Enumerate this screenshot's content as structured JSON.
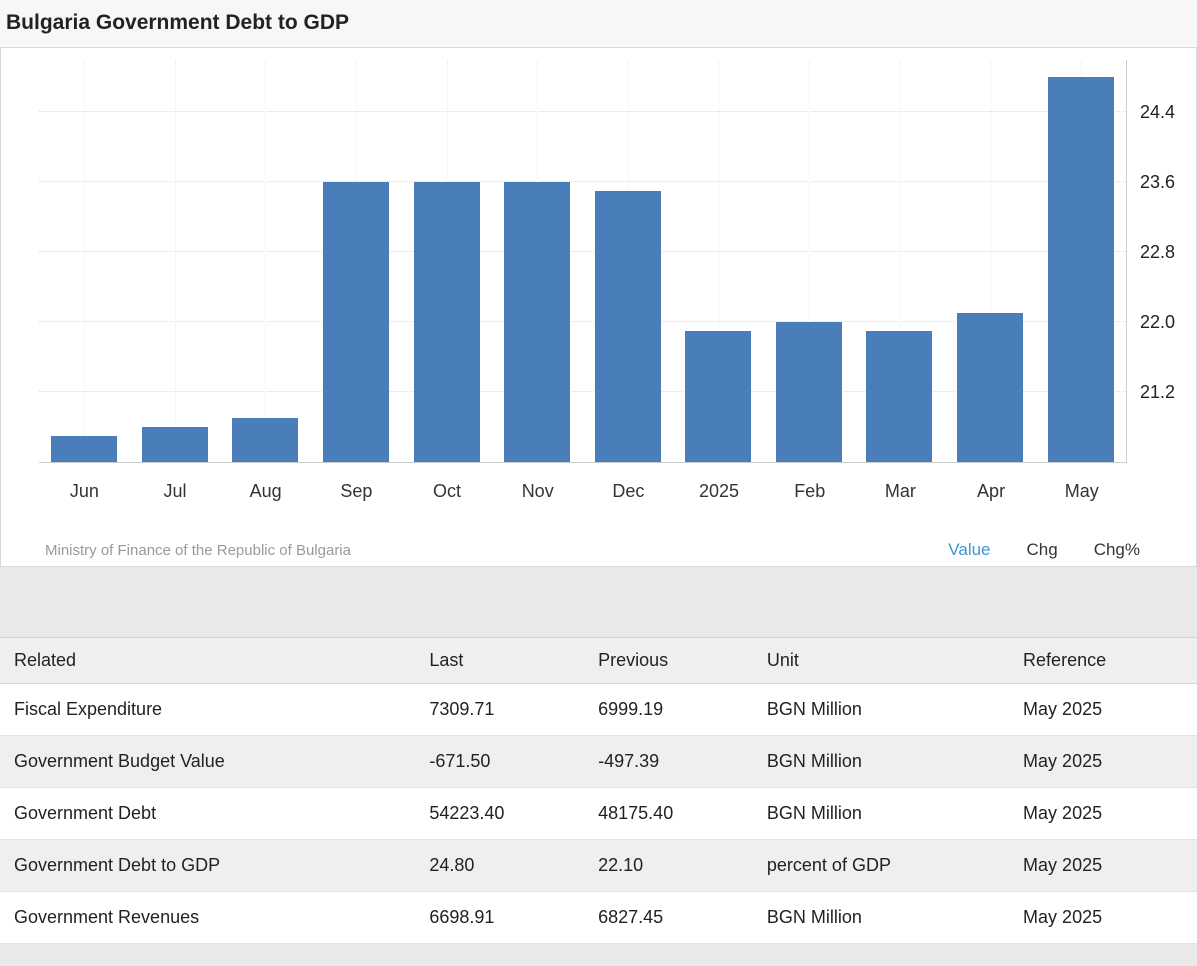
{
  "page": {
    "title": "Bulgaria Government Debt to GDP"
  },
  "chart": {
    "source": "Ministry of Finance of the Republic of Bulgaria",
    "toolbar": {
      "value_label": "Value",
      "chg_label": "Chg",
      "chgpct_label": "Chg%"
    }
  },
  "chart_data": {
    "type": "bar",
    "title": "Bulgaria Government Debt to GDP",
    "categories": [
      "Jun",
      "Jul",
      "Aug",
      "Sep",
      "Oct",
      "Nov",
      "Dec",
      "2025",
      "Feb",
      "Mar",
      "Apr",
      "May"
    ],
    "values": [
      20.7,
      20.8,
      20.9,
      23.6,
      23.6,
      23.6,
      23.5,
      21.9,
      22.0,
      21.9,
      22.1,
      24.8
    ],
    "yticks": [
      21.2,
      22.0,
      22.8,
      23.6,
      24.4
    ],
    "ylim": [
      20.4,
      25.0
    ],
    "bar_color": "#4a7ebb",
    "grid": true,
    "legend_position": "none"
  },
  "table": {
    "headers": [
      "Related",
      "Last",
      "Previous",
      "Unit",
      "Reference"
    ],
    "rows": [
      [
        "Fiscal Expenditure",
        "7309.71",
        "6999.19",
        "BGN Million",
        "May 2025"
      ],
      [
        "Government Budget Value",
        "-671.50",
        "-497.39",
        "BGN Million",
        "May 2025"
      ],
      [
        "Government Debt",
        "54223.40",
        "48175.40",
        "BGN Million",
        "May 2025"
      ],
      [
        "Government Debt to GDP",
        "24.80",
        "22.10",
        "percent of GDP",
        "May 2025"
      ],
      [
        "Government Revenues",
        "6698.91",
        "6827.45",
        "BGN Million",
        "May 2025"
      ]
    ]
  }
}
